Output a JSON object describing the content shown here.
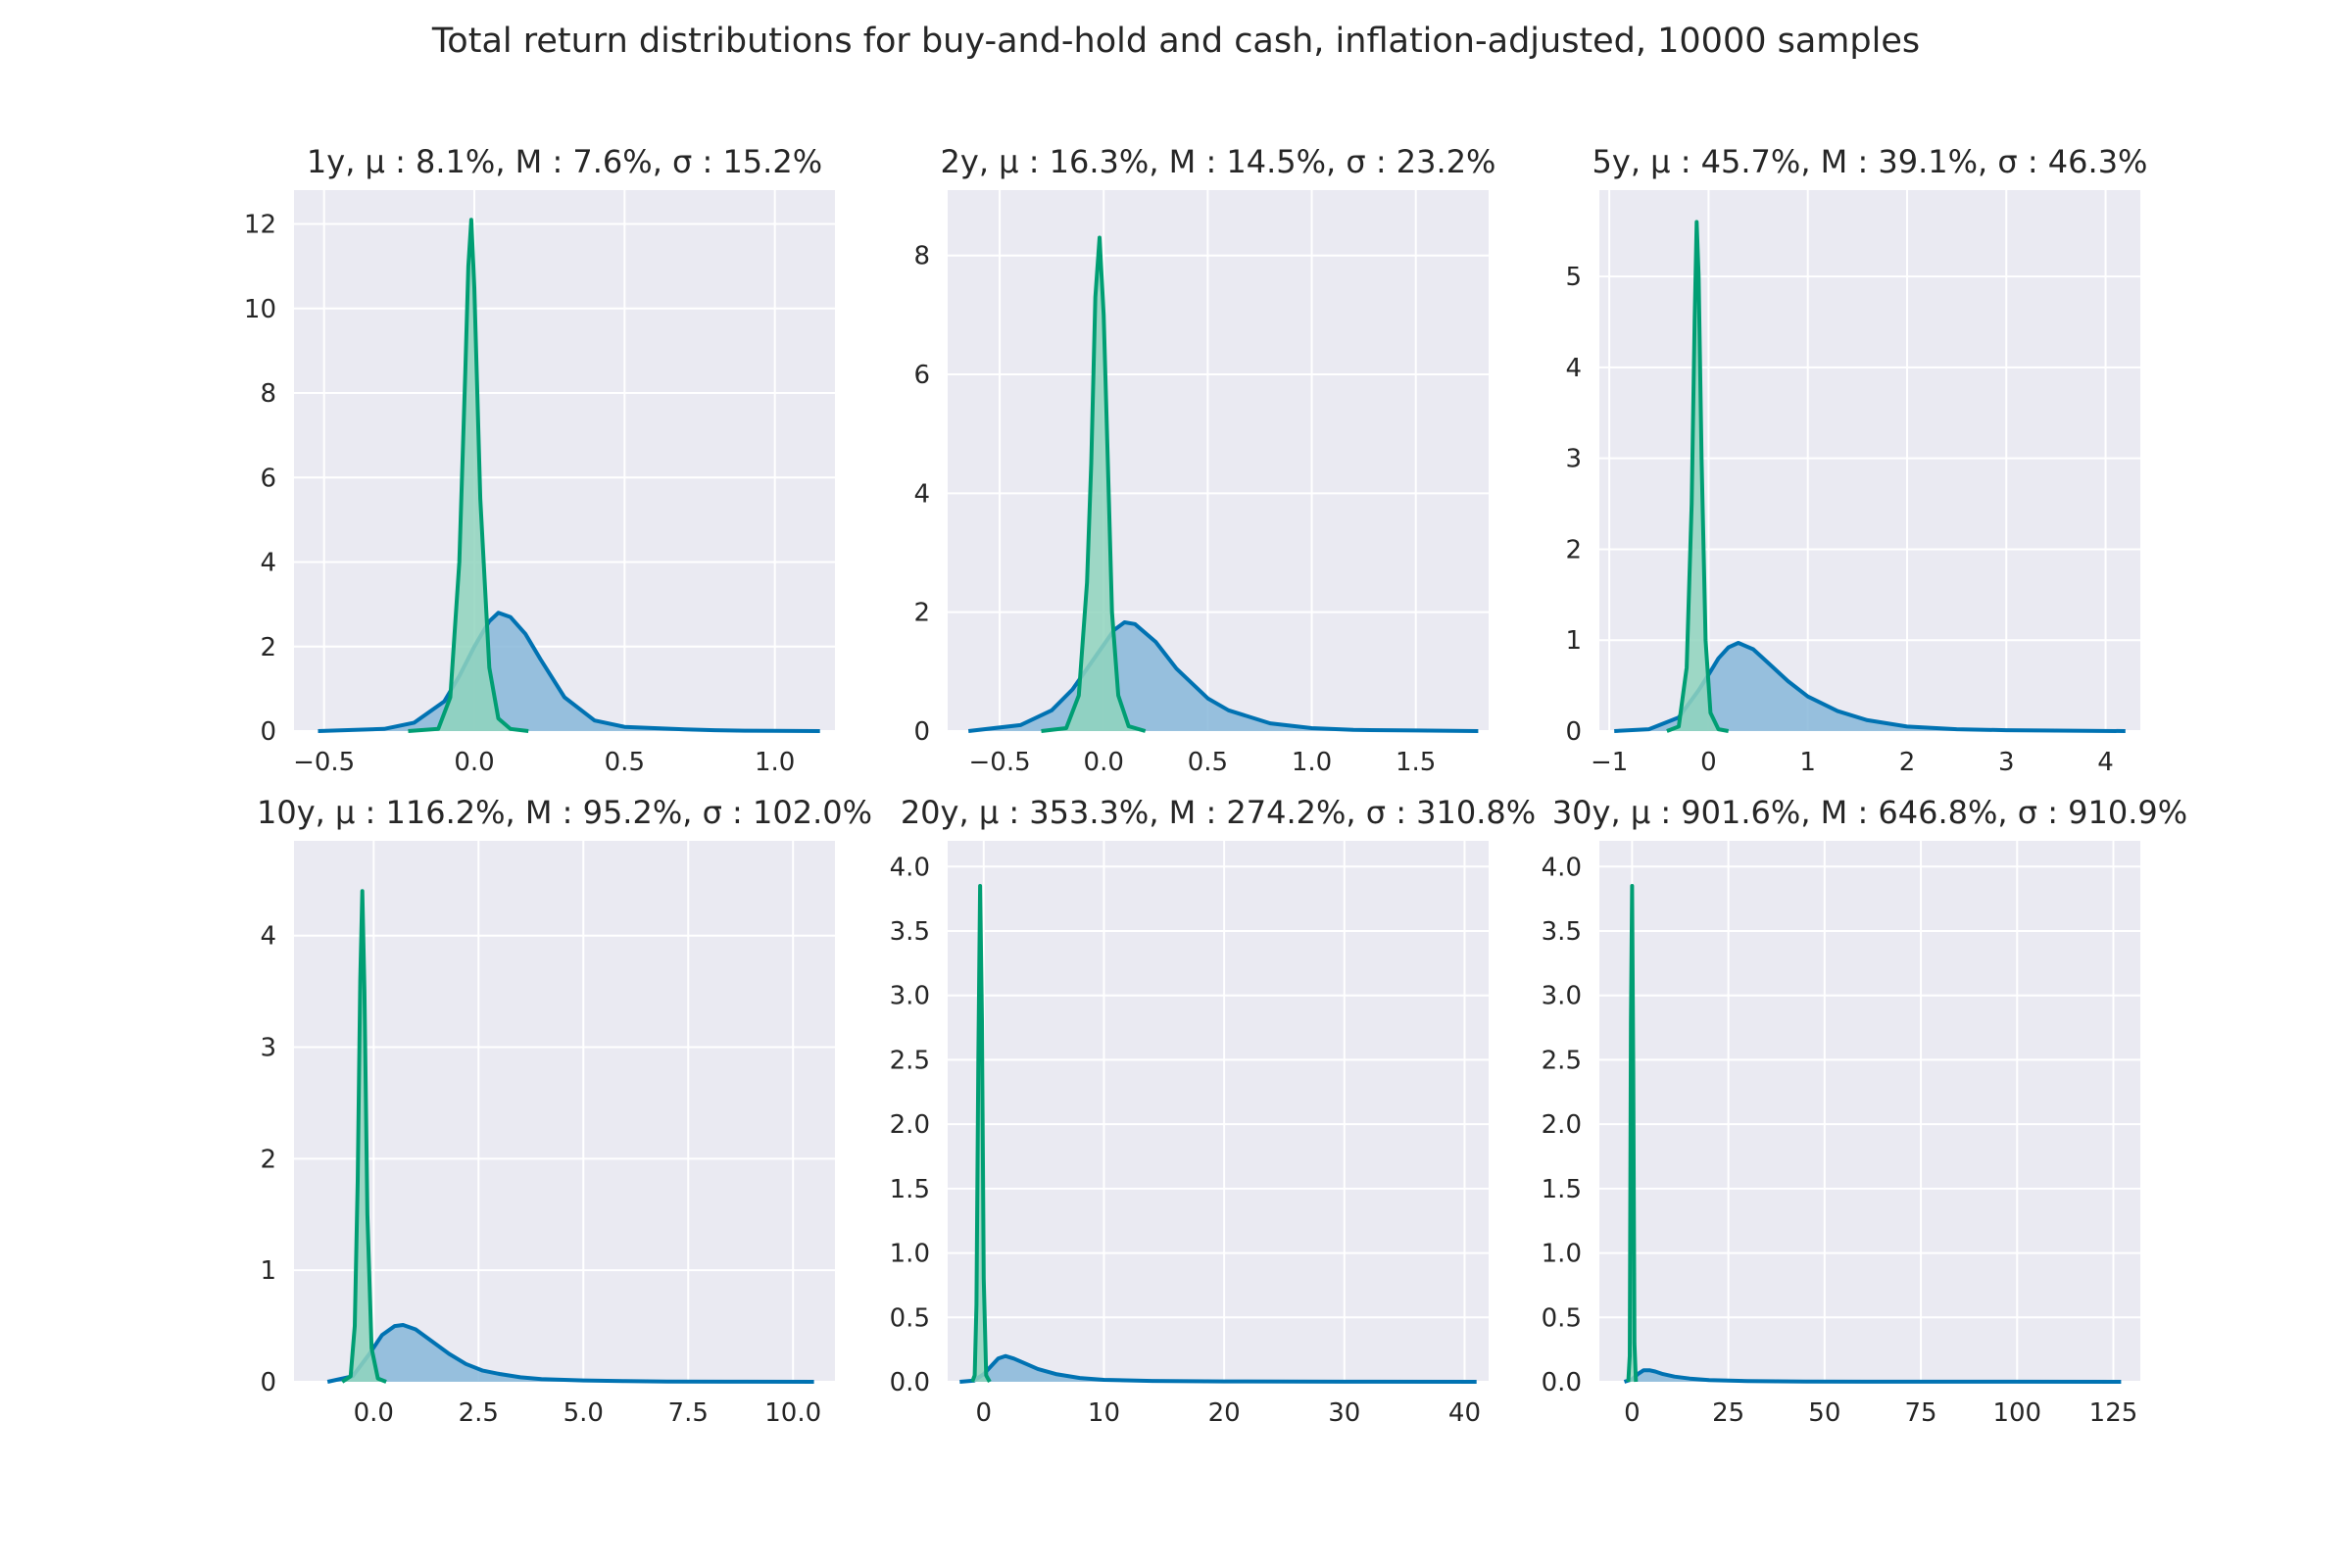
{
  "figure_title": "Total return distributions for buy-and-hold and cash, inflation-adjusted, 10000 samples",
  "colors": {
    "background": "#ffffff",
    "panel_bg": "#eaeaf2",
    "grid": "#ffffff",
    "stock_line": "#0072b2",
    "stock_fill": "#87b7d9",
    "cash_line": "#009e73",
    "cash_fill": "#8fd3bd"
  },
  "chart_data": [
    {
      "type": "area",
      "title": "1y, μ : 8.1%, M : 7.6%, σ : 15.2%",
      "xlim": [
        -0.6,
        1.2
      ],
      "ylim": [
        0,
        12.8
      ],
      "xticks": [
        -0.5,
        0.0,
        0.5,
        1.0
      ],
      "xtick_labels": [
        "−0.5",
        "0.0",
        "0.5",
        "1.0"
      ],
      "yticks": [
        0,
        2,
        4,
        6,
        8,
        10,
        12
      ],
      "ytick_labels": [
        "0",
        "2",
        "4",
        "6",
        "8",
        "10",
        "12"
      ],
      "series": [
        {
          "key": "stock",
          "color_key": "stock",
          "x": [
            -0.52,
            -0.3,
            -0.2,
            -0.1,
            -0.05,
            0.0,
            0.05,
            0.08,
            0.12,
            0.17,
            0.22,
            0.3,
            0.4,
            0.5,
            0.6,
            0.7,
            0.8,
            0.9,
            1.0,
            1.15
          ],
          "y": [
            0,
            0.05,
            0.2,
            0.7,
            1.3,
            2.0,
            2.6,
            2.8,
            2.7,
            2.3,
            1.7,
            0.8,
            0.25,
            0.1,
            0.07,
            0.04,
            0.02,
            0.01,
            0.005,
            0
          ]
        },
        {
          "key": "cash",
          "color_key": "cash",
          "x": [
            -0.22,
            -0.12,
            -0.08,
            -0.05,
            -0.03,
            -0.02,
            -0.01,
            0.0,
            0.02,
            0.05,
            0.08,
            0.12,
            0.18
          ],
          "y": [
            0,
            0.05,
            0.8,
            4.0,
            8.5,
            11.0,
            12.1,
            10.5,
            5.5,
            1.5,
            0.3,
            0.05,
            0
          ]
        }
      ]
    },
    {
      "type": "area",
      "title": "2y, μ : 16.3%, M : 14.5%, σ : 23.2%",
      "xlim": [
        -0.75,
        1.85
      ],
      "ylim": [
        0,
        9.1
      ],
      "xticks": [
        -0.5,
        0.0,
        0.5,
        1.0,
        1.5
      ],
      "xtick_labels": [
        "−0.5",
        "0.0",
        "0.5",
        "1.0",
        "1.5"
      ],
      "yticks": [
        0,
        2,
        4,
        6,
        8
      ],
      "ytick_labels": [
        "0",
        "2",
        "4",
        "6",
        "8"
      ],
      "series": [
        {
          "key": "stock",
          "color_key": "stock",
          "x": [
            -0.65,
            -0.4,
            -0.25,
            -0.15,
            -0.05,
            0.05,
            0.1,
            0.15,
            0.25,
            0.35,
            0.5,
            0.6,
            0.8,
            1.0,
            1.2,
            1.5,
            1.8
          ],
          "y": [
            0,
            0.1,
            0.35,
            0.7,
            1.2,
            1.7,
            1.83,
            1.8,
            1.5,
            1.05,
            0.55,
            0.35,
            0.13,
            0.05,
            0.02,
            0.01,
            0
          ]
        },
        {
          "key": "cash",
          "color_key": "cash",
          "x": [
            -0.3,
            -0.18,
            -0.12,
            -0.08,
            -0.06,
            -0.04,
            -0.02,
            0.0,
            0.02,
            0.04,
            0.07,
            0.12,
            0.2
          ],
          "y": [
            0,
            0.05,
            0.6,
            2.5,
            4.5,
            7.3,
            8.3,
            7.0,
            4.5,
            2.0,
            0.6,
            0.08,
            0
          ]
        }
      ]
    },
    {
      "type": "area",
      "title": "5y, μ : 45.7%, M : 39.1%, σ : 46.3%",
      "xlim": [
        -1.1,
        4.35
      ],
      "ylim": [
        0,
        5.95
      ],
      "xticks": [
        -1,
        0,
        1,
        2,
        3,
        4
      ],
      "xtick_labels": [
        "−1",
        "0",
        "1",
        "2",
        "3",
        "4"
      ],
      "yticks": [
        0,
        1,
        2,
        3,
        4,
        5
      ],
      "ytick_labels": [
        "0",
        "1",
        "2",
        "3",
        "4",
        "5"
      ],
      "series": [
        {
          "key": "stock",
          "color_key": "stock",
          "x": [
            -0.95,
            -0.6,
            -0.3,
            -0.1,
            0.0,
            0.1,
            0.2,
            0.3,
            0.45,
            0.6,
            0.8,
            1.0,
            1.3,
            1.6,
            2.0,
            2.5,
            3.0,
            3.5,
            4.2
          ],
          "y": [
            0,
            0.02,
            0.15,
            0.45,
            0.62,
            0.8,
            0.92,
            0.97,
            0.9,
            0.75,
            0.55,
            0.38,
            0.22,
            0.12,
            0.05,
            0.02,
            0.01,
            0.005,
            0
          ]
        },
        {
          "key": "cash",
          "color_key": "cash",
          "x": [
            -0.42,
            -0.3,
            -0.22,
            -0.17,
            -0.14,
            -0.12,
            -0.1,
            -0.07,
            -0.03,
            0.02,
            0.1,
            0.2
          ],
          "y": [
            0,
            0.05,
            0.7,
            2.5,
            4.5,
            5.6,
            5.0,
            3.0,
            1.0,
            0.2,
            0.02,
            0
          ]
        }
      ]
    },
    {
      "type": "area",
      "title": "10y, μ : 116.2%, M : 95.2%, σ : 102.0%",
      "xlim": [
        -1.9,
        11.0
      ],
      "ylim": [
        0,
        4.85
      ],
      "xticks": [
        0.0,
        2.5,
        5.0,
        7.5,
        10.0
      ],
      "xtick_labels": [
        "0.0",
        "2.5",
        "5.0",
        "7.5",
        "10.0"
      ],
      "yticks": [
        0,
        1,
        2,
        3,
        4
      ],
      "ytick_labels": [
        "0",
        "1",
        "2",
        "3",
        "4"
      ],
      "series": [
        {
          "key": "stock",
          "color_key": "stock",
          "x": [
            -1.1,
            -0.5,
            -0.1,
            0.2,
            0.5,
            0.7,
            1.0,
            1.4,
            1.8,
            2.2,
            2.6,
            3.0,
            3.5,
            4.0,
            5.0,
            6.0,
            7.0,
            8.5,
            10.5
          ],
          "y": [
            0,
            0.05,
            0.25,
            0.42,
            0.5,
            0.51,
            0.47,
            0.36,
            0.25,
            0.16,
            0.1,
            0.07,
            0.04,
            0.025,
            0.012,
            0.006,
            0.003,
            0.001,
            0
          ]
        },
        {
          "key": "cash",
          "color_key": "cash",
          "x": [
            -0.75,
            -0.55,
            -0.45,
            -0.38,
            -0.32,
            -0.27,
            -0.22,
            -0.15,
            -0.05,
            0.1,
            0.3
          ],
          "y": [
            0,
            0.05,
            0.5,
            1.8,
            3.6,
            4.4,
            3.5,
            1.5,
            0.3,
            0.03,
            0
          ]
        }
      ]
    },
    {
      "type": "area",
      "title": "20y, μ : 353.3%, M : 274.2%, σ : 310.8%",
      "xlim": [
        -3.0,
        42.0
      ],
      "ylim": [
        0,
        4.2
      ],
      "xticks": [
        0,
        10,
        20,
        30,
        40
      ],
      "xtick_labels": [
        "0",
        "10",
        "20",
        "30",
        "40"
      ],
      "yticks": [
        0.0,
        0.5,
        1.0,
        1.5,
        2.0,
        2.5,
        3.0,
        3.5,
        4.0
      ],
      "ytick_labels": [
        "0.0",
        "0.5",
        "1.0",
        "1.5",
        "2.0",
        "2.5",
        "3.0",
        "3.5",
        "4.0"
      ],
      "series": [
        {
          "key": "stock",
          "color_key": "stock",
          "x": [
            -2.0,
            -0.8,
            0.0,
            0.7,
            1.2,
            1.8,
            2.5,
            3.5,
            4.5,
            6.0,
            8.0,
            10.0,
            14.0,
            20.0,
            30.0,
            41.0
          ],
          "y": [
            0,
            0.01,
            0.06,
            0.13,
            0.18,
            0.2,
            0.18,
            0.14,
            0.1,
            0.06,
            0.03,
            0.015,
            0.007,
            0.003,
            0.001,
            0
          ]
        },
        {
          "key": "cash",
          "color_key": "cash",
          "x": [
            -0.95,
            -0.75,
            -0.6,
            -0.45,
            -0.3,
            -0.15,
            0.0,
            0.2,
            0.5
          ],
          "y": [
            0,
            0.05,
            0.6,
            2.5,
            3.85,
            2.8,
            0.8,
            0.05,
            0
          ]
        }
      ]
    },
    {
      "type": "area",
      "title": "30y, μ : 901.6%, M : 646.8%, σ : 910.9%",
      "xlim": [
        -8.5,
        132.0
      ],
      "ylim": [
        0,
        4.2
      ],
      "xticks": [
        0,
        25,
        50,
        75,
        100,
        125
      ],
      "xtick_labels": [
        "0",
        "25",
        "50",
        "75",
        "100",
        "125"
      ],
      "yticks": [
        0.0,
        0.5,
        1.0,
        1.5,
        2.0,
        2.5,
        3.0,
        3.5,
        4.0
      ],
      "ytick_labels": [
        "0.0",
        "0.5",
        "1.0",
        "1.5",
        "2.0",
        "2.5",
        "3.0",
        "3.5",
        "4.0"
      ],
      "series": [
        {
          "key": "stock",
          "color_key": "stock",
          "x": [
            -2.0,
            0.0,
            1.5,
            3.0,
            4.5,
            6.0,
            8.0,
            11.0,
            15.0,
            20.0,
            30.0,
            45.0,
            70.0,
            100.0,
            127.0
          ],
          "y": [
            0,
            0.02,
            0.06,
            0.09,
            0.09,
            0.08,
            0.06,
            0.04,
            0.025,
            0.014,
            0.006,
            0.002,
            0.001,
            0.0005,
            0
          ]
        },
        {
          "key": "cash",
          "color_key": "cash",
          "x": [
            -1.0,
            -0.6,
            -0.3,
            0.0,
            0.3,
            0.6,
            1.0
          ],
          "y": [
            0,
            0.2,
            2.8,
            3.85,
            2.4,
            0.3,
            0
          ]
        }
      ]
    }
  ]
}
